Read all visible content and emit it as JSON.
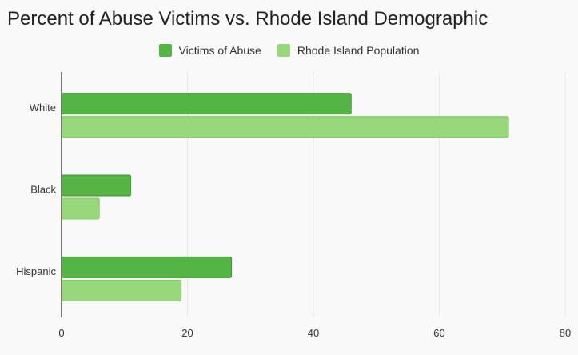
{
  "chart_data": {
    "type": "bar",
    "orientation": "horizontal",
    "title": "Percent of Abuse Victims vs. Rhode Island Demographic",
    "categories": [
      "White",
      "Black",
      "Hispanic"
    ],
    "series": [
      {
        "name": "Victims of Abuse",
        "values": [
          46,
          11,
          27
        ],
        "color": "#54b444"
      },
      {
        "name": "Rhode Island Population",
        "values": [
          71,
          6,
          19
        ],
        "color": "#96d87a"
      }
    ],
    "xlim": [
      0,
      80
    ],
    "xticks": [
      "0",
      "20",
      "40",
      "60",
      "80"
    ],
    "xlabel": "",
    "ylabel": "",
    "grid": true,
    "legend_position": "top"
  }
}
